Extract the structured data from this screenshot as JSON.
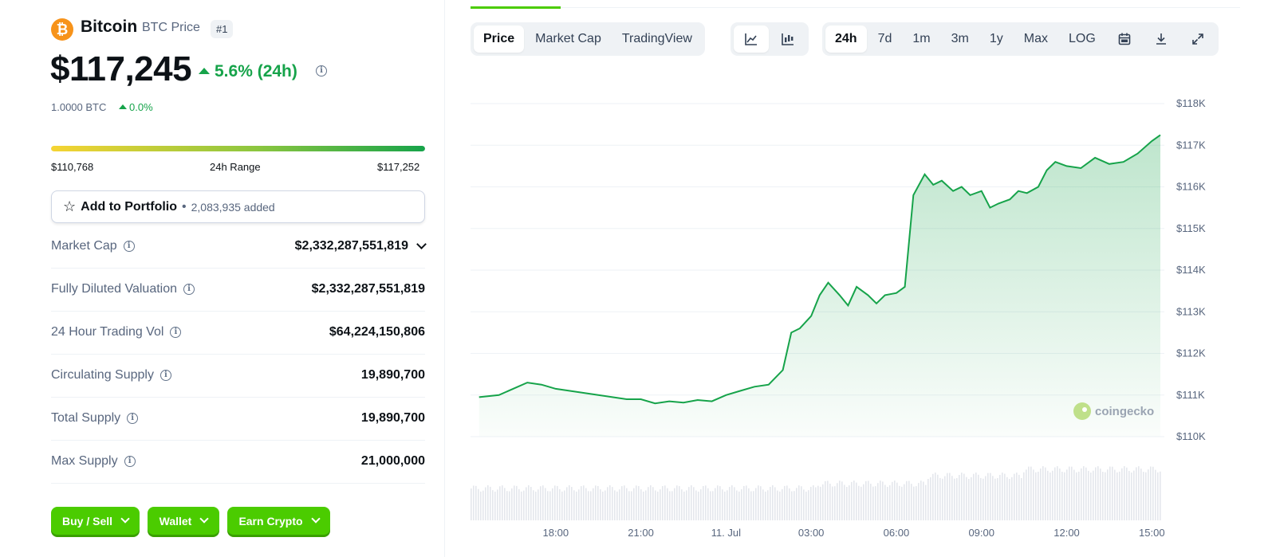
{
  "coin": {
    "name": "Bitcoin",
    "sub": "BTC Price",
    "rank": "#1",
    "logo_glyph": "₿",
    "price": "$117,245",
    "change": "5.6% (24h)",
    "btc_amount": "1.0000 BTC",
    "btc_change": "0.0%"
  },
  "range": {
    "low": "$110,768",
    "label": "24h Range",
    "high": "$117,252",
    "position": 0.999
  },
  "portfolio": {
    "label": "Add to Portfolio",
    "dot": "•",
    "count": "2,083,935 added"
  },
  "stats": [
    {
      "label": "Market Cap",
      "value": "$2,332,287,551,819",
      "dropdown": true
    },
    {
      "label": "Fully Diluted Valuation",
      "value": "$2,332,287,551,819",
      "dropdown": false
    },
    {
      "label": "24 Hour Trading Vol",
      "value": "$64,224,150,806",
      "dropdown": false
    },
    {
      "label": "Circulating Supply",
      "value": "19,890,700",
      "dropdown": false
    },
    {
      "label": "Total Supply",
      "value": "19,890,700",
      "dropdown": false
    },
    {
      "label": "Max Supply",
      "value": "21,000,000",
      "dropdown": false
    }
  ],
  "actions": [
    "Buy / Sell",
    "Wallet",
    "Earn Crypto"
  ],
  "chart_tabs": [
    "Price",
    "Market Cap",
    "TradingView"
  ],
  "chart_tab_active": "Price",
  "chart_styles": [
    "line-chart-icon",
    "candlestick-icon"
  ],
  "time_ranges": [
    "24h",
    "7d",
    "1m",
    "3m",
    "1y",
    "Max",
    "LOG"
  ],
  "time_range_active": "24h",
  "tool_icons": [
    "calendar-icon",
    "download-icon",
    "expand-icon"
  ],
  "watermark": "coingecko",
  "colors": {
    "accent": "#4bcc00",
    "up": "#16a34a",
    "line": "#16a34a",
    "orange": "#f7931a"
  },
  "chart_data": {
    "type": "area",
    "ylim": [
      110000,
      118000
    ],
    "y_ticks": [
      "$118K",
      "$117K",
      "$116K",
      "$115K",
      "$114K",
      "$113K",
      "$112K",
      "$111K",
      "$110K"
    ],
    "x_ticks": [
      "18:00",
      "21:00",
      "11. Jul",
      "03:00",
      "06:00",
      "09:00",
      "12:00",
      "15:00"
    ],
    "x_hours": [
      15.3,
      16,
      16.5,
      17,
      17.5,
      18,
      18.5,
      19,
      19.5,
      20,
      20.5,
      21,
      21.5,
      22,
      22.5,
      23,
      23.5,
      24,
      24.5,
      25,
      25.5,
      26,
      26.3,
      26.6,
      27,
      27.3,
      27.6,
      28,
      28.3,
      28.6,
      29,
      29.3,
      29.6,
      30,
      30.3,
      30.6,
      31,
      31.3,
      31.6,
      32,
      32.3,
      32.6,
      33,
      33.3,
      33.6,
      34,
      34.3,
      34.6,
      35,
      35.3,
      35.6,
      36,
      36.5,
      37,
      37.5,
      38,
      38.5,
      39,
      39.3
    ],
    "y_values": [
      110950,
      111000,
      111150,
      111300,
      111250,
      111150,
      111100,
      111050,
      111000,
      110950,
      110900,
      110900,
      110800,
      110850,
      110820,
      110880,
      110850,
      111000,
      111100,
      111200,
      111250,
      111600,
      112500,
      112600,
      112900,
      113400,
      113700,
      113400,
      113150,
      113600,
      113400,
      113200,
      113400,
      113450,
      113600,
      115800,
      116300,
      116050,
      116150,
      115900,
      116000,
      115800,
      115900,
      115500,
      115600,
      115700,
      115900,
      115850,
      116000,
      116400,
      116600,
      116500,
      116450,
      116700,
      116550,
      116600,
      116800,
      117100,
      117245
    ],
    "volume_note": "volume bars shown beneath price line"
  }
}
